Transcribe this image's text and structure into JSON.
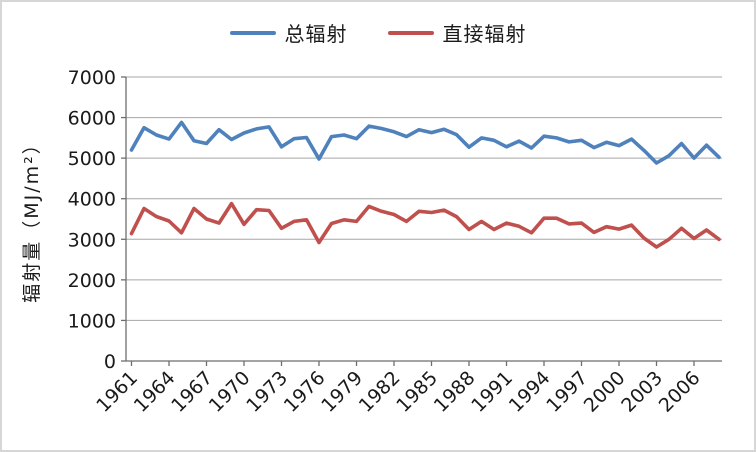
{
  "chart_data": {
    "type": "line",
    "title": "",
    "xlabel": "",
    "ylabel": "辐射量（MJ/m²）",
    "ylim": [
      0,
      7000
    ],
    "ytick_step": 1000,
    "ytick_labels": [
      "0",
      "1000",
      "2000",
      "3000",
      "4000",
      "5000",
      "6000",
      "7000"
    ],
    "x": [
      1961,
      1962,
      1963,
      1964,
      1965,
      1966,
      1967,
      1968,
      1969,
      1970,
      1971,
      1972,
      1973,
      1974,
      1975,
      1976,
      1977,
      1978,
      1979,
      1980,
      1981,
      1982,
      1983,
      1984,
      1985,
      1986,
      1987,
      1988,
      1989,
      1990,
      1991,
      1992,
      1993,
      1994,
      1995,
      1996,
      1997,
      1998,
      1999,
      2000,
      2001,
      2002,
      2003,
      2004,
      2005,
      2006,
      2007,
      2008
    ],
    "xtick_labels": [
      "1961",
      "1964",
      "1967",
      "1970",
      "1973",
      "1976",
      "1979",
      "1982",
      "1985",
      "1988",
      "1991",
      "1994",
      "1997",
      "2000",
      "2003",
      "2006"
    ],
    "xtick_label_interval": 3,
    "grid": "horizontal",
    "gridline_color": "#a6a6a6",
    "axis_color": "#6e6e6e",
    "text_color": "#1a1a1a",
    "legend_position": "top",
    "series": [
      {
        "name": "总辐射",
        "color": "#4F81BD",
        "values": [
          5200,
          5750,
          5570,
          5470,
          5880,
          5430,
          5360,
          5700,
          5460,
          5620,
          5720,
          5770,
          5280,
          5480,
          5510,
          4980,
          5530,
          5570,
          5480,
          5790,
          5730,
          5650,
          5530,
          5700,
          5630,
          5710,
          5580,
          5270,
          5500,
          5440,
          5280,
          5420,
          5250,
          5540,
          5500,
          5400,
          5440,
          5260,
          5390,
          5310,
          5470,
          5190,
          4880,
          5060,
          5360,
          5000,
          5320,
          5020
        ]
      },
      {
        "name": "直接辐射",
        "color": "#C0504D",
        "values": [
          3140,
          3760,
          3560,
          3450,
          3160,
          3760,
          3500,
          3400,
          3880,
          3370,
          3730,
          3710,
          3270,
          3440,
          3480,
          2920,
          3390,
          3480,
          3440,
          3810,
          3690,
          3610,
          3440,
          3690,
          3660,
          3720,
          3560,
          3240,
          3440,
          3240,
          3400,
          3320,
          3160,
          3520,
          3520,
          3380,
          3400,
          3170,
          3310,
          3250,
          3350,
          3030,
          2810,
          3000,
          3270,
          3020,
          3230,
          3000
        ]
      }
    ]
  }
}
